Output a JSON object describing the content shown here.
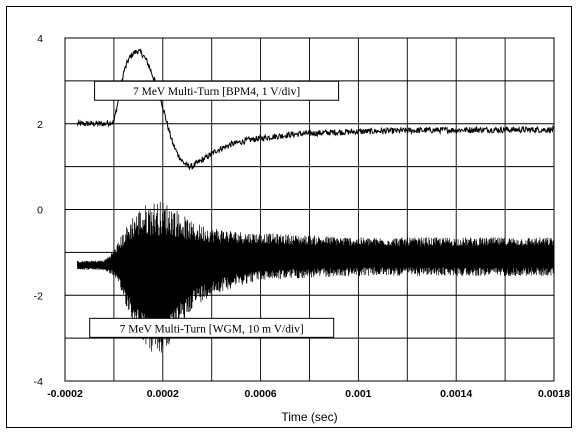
{
  "chart_data": {
    "type": "line",
    "title": "",
    "xlabel": "Time (sec)",
    "ylabel": "",
    "xlim": [
      -0.0002,
      0.0018
    ],
    "ylim": [
      -4,
      4
    ],
    "x_ticks": [
      "-0.0002",
      "0.0002",
      "0.0006",
      "0.001",
      "0.0014",
      "0.0018"
    ],
    "y_ticks": [
      "4",
      "2",
      "0",
      "-2",
      "-4"
    ],
    "grid": true,
    "series": [
      {
        "name": "7 MeV Multi-Turn [BPM4, 1 V/div]",
        "color": "#000000",
        "description": "upper trace",
        "x": [
          -0.00015,
          -4e-05,
          0.0,
          2e-05,
          4e-05,
          6e-05,
          8e-05,
          0.0001,
          0.00012,
          0.00014,
          0.00016,
          0.00018,
          0.0002,
          0.00022,
          0.00024,
          0.00026,
          0.00028,
          0.0003,
          0.00032,
          0.00034,
          0.00038,
          0.00042,
          0.00048,
          0.00055,
          0.00065,
          0.00075,
          0.0009,
          0.0011,
          0.0013,
          0.0015,
          0.0018
        ],
        "y": [
          2.0,
          2.0,
          2.05,
          2.6,
          3.2,
          3.5,
          3.65,
          3.7,
          3.6,
          3.4,
          3.1,
          2.8,
          2.4,
          1.95,
          1.55,
          1.3,
          1.12,
          1.02,
          1.0,
          1.08,
          1.22,
          1.38,
          1.52,
          1.62,
          1.7,
          1.76,
          1.8,
          1.83,
          1.85,
          1.86,
          1.86
        ]
      },
      {
        "name": "7 MeV Multi-Turn [WGM, 10 m V/div]",
        "color": "#000000",
        "description": "lower oscillating trace (center and amplitude envelope)",
        "x": [
          -0.00015,
          -4e-05,
          0.0,
          4e-05,
          8e-05,
          0.00012,
          0.00016,
          0.0002,
          0.00024,
          0.00028,
          0.00032,
          0.0004,
          0.0005,
          0.0006,
          0.0008,
          0.001,
          0.0012,
          0.0014,
          0.0016,
          0.0018
        ],
        "center": [
          -1.3,
          -1.3,
          -1.25,
          -1.3,
          -1.4,
          -1.5,
          -1.6,
          -1.6,
          -1.5,
          -1.4,
          -1.3,
          -1.2,
          -1.15,
          -1.1,
          -1.1,
          -1.1,
          -1.1,
          -1.1,
          -1.1,
          -1.1
        ],
        "amplitude": [
          0.1,
          0.12,
          0.3,
          0.8,
          1.3,
          1.6,
          1.8,
          1.8,
          1.6,
          1.3,
          1.0,
          0.8,
          0.65,
          0.55,
          0.5,
          0.45,
          0.45,
          0.45,
          0.45,
          0.45
        ]
      }
    ],
    "annotations": [
      {
        "text": "7 MeV Multi-Turn [BPM4, 1 V/div]",
        "x": 0.00042,
        "y": 2.77
      },
      {
        "text": "7 MeV Multi-Turn [WGM, 10 m V/div]",
        "x": 0.0004,
        "y": -2.76
      }
    ]
  }
}
